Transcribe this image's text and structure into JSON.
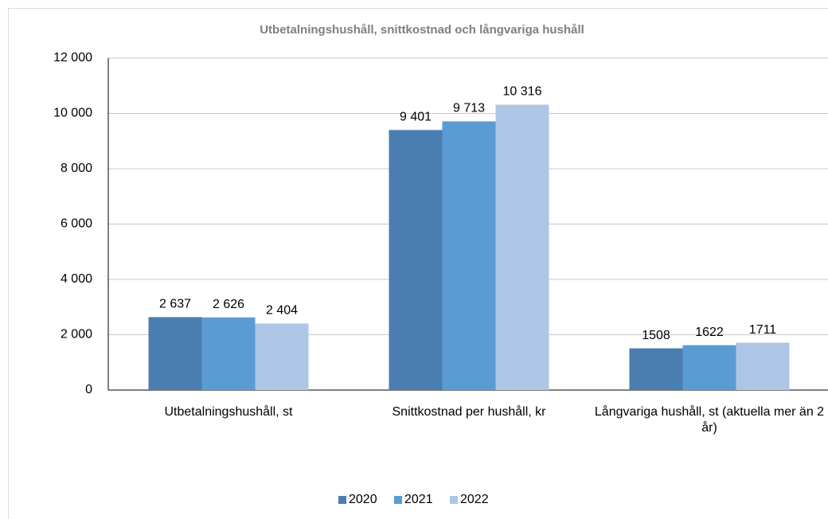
{
  "chart_data": {
    "type": "bar",
    "title": "Utbetalningshushåll, snittkostnad och långvariga hushåll",
    "categories": [
      "Utbetalningshushåll, st",
      "Snittkostnad per hushåll, kr",
      "Långvariga hushåll, st (aktuella mer än 2 år)"
    ],
    "series": [
      {
        "name": "2020",
        "color": "#4a7eb1",
        "values": [
          2637,
          9401,
          1508
        ],
        "value_labels": [
          "2 637",
          "9 401",
          "1508"
        ]
      },
      {
        "name": "2021",
        "color": "#5b9bd5",
        "values": [
          2626,
          9713,
          1622
        ],
        "value_labels": [
          "2 626",
          "9 713",
          "1622"
        ]
      },
      {
        "name": "2022",
        "color": "#adc6e5",
        "values": [
          2404,
          10316,
          1711
        ],
        "value_labels": [
          "2 404",
          "10 316",
          "1711"
        ]
      }
    ],
    "ylim": [
      0,
      12000
    ],
    "yticks": [
      0,
      {
        "value": 2000,
        "label": "2 000"
      },
      {
        "value": 4000,
        "label": "4 000"
      },
      {
        "value": 6000,
        "label": "6 000"
      },
      {
        "value": 8000,
        "label": "8 000"
      },
      {
        "value": 10000,
        "label": "10 000"
      },
      {
        "value": 12000,
        "label": "12 000"
      }
    ],
    "grid": true,
    "legend": "bottom"
  }
}
